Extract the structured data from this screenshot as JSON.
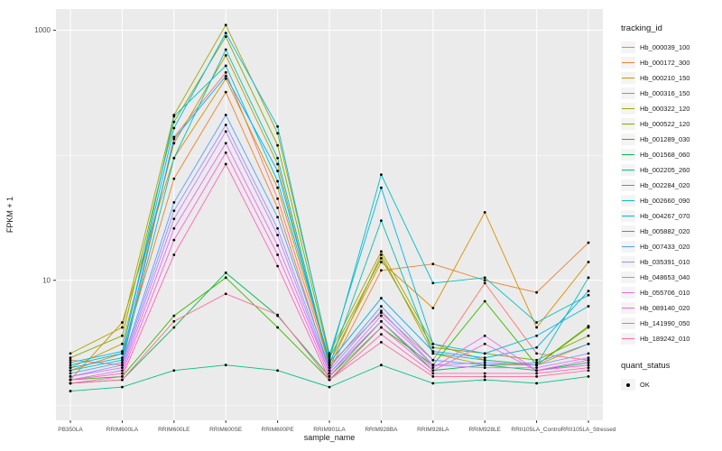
{
  "figure": {
    "background": "#FFFFFF",
    "panel_background": "#EBEBEB",
    "grid_color": "#FFFFFF",
    "tick_color": "#333333",
    "tick_label_color": "#4D4D4D",
    "axis_title_color": "#1A1A1A"
  },
  "legend": {
    "tracking_title": "tracking_id",
    "quant_title": "quant_status",
    "quant_items": [
      {
        "label": "OK",
        "symbol": "point",
        "color": "#000000"
      }
    ]
  },
  "chart_data": {
    "type": "line",
    "title": "",
    "xlabel": "sample_name",
    "ylabel": "FPKM + 1",
    "y_scale": "log10",
    "y_ticks": [
      10,
      1000
    ],
    "y_minor": [
      1,
      100
    ],
    "ylim_log10": [
      -0.12,
      3.17
    ],
    "grid": true,
    "legend_position": "right",
    "point_color": "#000000",
    "categories": [
      "PB350LA",
      "RRIM600LA",
      "RRIM600LE",
      "RRIM600SE",
      "RRIM600PE",
      "RRIM901LA",
      "RRIM928BA",
      "RRIM928LA",
      "RRIM928LE",
      "RRII105LA_Control",
      "RRII105LA_Stressed"
    ],
    "series": [
      {
        "name": "Hb_000039_100",
        "color": "#F8766D",
        "values": [
          2.3,
          2.1,
          140,
          460,
          45,
          2.1,
          5.5,
          2.3,
          9.5,
          2.6,
          2.3
        ]
      },
      {
        "name": "Hb_000172_300",
        "color": "#EA8331",
        "values": [
          1.9,
          2.6,
          65,
          320,
          38,
          1.9,
          12,
          13.5,
          10,
          8,
          20
        ]
      },
      {
        "name": "Hb_000210_150",
        "color": "#D89000",
        "values": [
          1.6,
          4.6,
          95,
          410,
          55,
          2.2,
          14,
          6,
          35,
          4.2,
          14
        ]
      },
      {
        "name": "Hb_000316_150",
        "color": "#C09B00",
        "values": [
          2.0,
          3.1,
          125,
          630,
          85,
          2.0,
          16,
          2.6,
          2.1,
          2.1,
          3.1
        ]
      },
      {
        "name": "Hb_000322_120",
        "color": "#A3A500",
        "values": [
          2.6,
          4.2,
          210,
          1100,
          150,
          2.6,
          17,
          3.1,
          2.3,
          2.1,
          4.2
        ]
      },
      {
        "name": "Hb_000522_120",
        "color": "#7CAE00",
        "values": [
          2.4,
          3.6,
          185,
          890,
          120,
          2.4,
          15,
          2.9,
          2.6,
          2.3,
          3.6
        ]
      },
      {
        "name": "Hb_001289_030",
        "color": "#39B600",
        "values": [
          1.6,
          1.7,
          5.2,
          10.5,
          4.2,
          1.6,
          4.2,
          2.1,
          6.8,
          2.1,
          4.3
        ]
      },
      {
        "name": "Hb_001568_060",
        "color": "#00BB4E",
        "values": [
          1.5,
          1.6,
          4.2,
          11.5,
          5.2,
          1.7,
          4.7,
          1.9,
          2.1,
          1.9,
          2.2
        ]
      },
      {
        "name": "Hb_002205_260",
        "color": "#00C087",
        "values": [
          1.3,
          1.4,
          1.9,
          2.1,
          1.9,
          1.4,
          2.1,
          1.5,
          1.6,
          1.5,
          1.7
        ]
      },
      {
        "name": "Hb_002284_020",
        "color": "#00C0B2",
        "values": [
          1.9,
          2.3,
          95,
          700,
          95,
          2.1,
          30,
          2.6,
          2.3,
          2.1,
          10.5
        ]
      },
      {
        "name": "Hb_002660_090",
        "color": "#00BFC4",
        "values": [
          2.1,
          2.6,
          205,
          520,
          62,
          2.3,
          70,
          9.5,
          10.5,
          4.6,
          7.6
        ]
      },
      {
        "name": "Hb_004267_070",
        "color": "#00B8E5",
        "values": [
          2.2,
          2.7,
          165,
          950,
          170,
          2.5,
          55,
          3.1,
          2.6,
          3.6,
          6.2
        ]
      },
      {
        "name": "Hb_005882_020",
        "color": "#00ACFC",
        "values": [
          2.0,
          2.4,
          135,
          430,
          75,
          2.2,
          7.2,
          2.7,
          2.4,
          2.9,
          8.2
        ]
      },
      {
        "name": "Hb_007433_020",
        "color": "#529EFF",
        "values": [
          1.8,
          2.2,
          42,
          210,
          32,
          2.0,
          6.2,
          2.3,
          2.1,
          2.2,
          3.1
        ]
      },
      {
        "name": "Hb_035391_010",
        "color": "#9590FF",
        "values": [
          1.7,
          2.1,
          36,
          175,
          26,
          1.9,
          5.7,
          2.1,
          2.2,
          2.1,
          2.6
        ]
      },
      {
        "name": "Hb_048653_040",
        "color": "#C77CFF",
        "values": [
          1.7,
          2.0,
          31,
          155,
          23,
          1.8,
          5.2,
          2.1,
          2.0,
          2.0,
          2.4
        ]
      },
      {
        "name": "Hb_055706_010",
        "color": "#E76BF3",
        "values": [
          1.6,
          1.9,
          26,
          125,
          19,
          1.8,
          4.7,
          2.0,
          3.6,
          1.9,
          2.3
        ]
      },
      {
        "name": "Hb_089140_020",
        "color": "#FA62DB",
        "values": [
          1.6,
          1.8,
          21,
          105,
          16,
          1.7,
          4.2,
          1.9,
          3.1,
          1.9,
          2.1
        ]
      },
      {
        "name": "Hb_141990_050",
        "color": "#FF62BC",
        "values": [
          1.5,
          1.7,
          16,
          85,
          13,
          1.6,
          3.7,
          1.8,
          1.8,
          1.8,
          2.0
        ]
      },
      {
        "name": "Hb_189242_010",
        "color": "#FF6A98",
        "values": [
          1.5,
          1.6,
          4.7,
          7.8,
          5.3,
          1.6,
          3.2,
          1.7,
          1.7,
          1.7,
          1.9
        ]
      }
    ]
  }
}
